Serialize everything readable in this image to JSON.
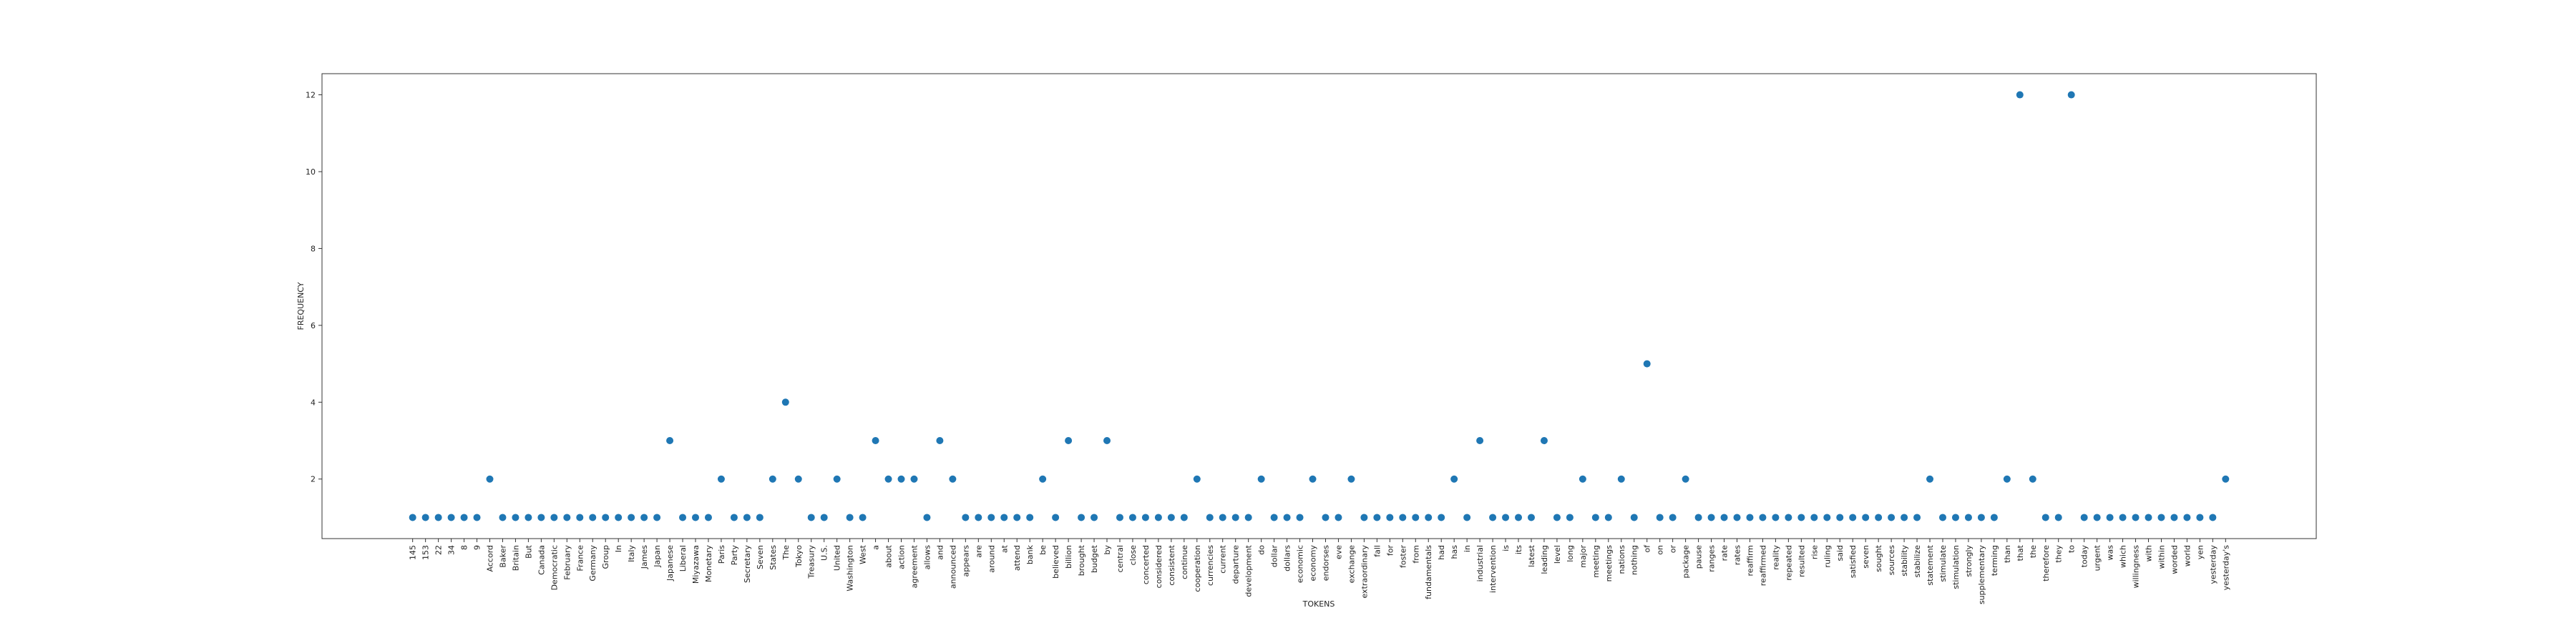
{
  "chart_data": {
    "type": "scatter",
    "xlabel": "TOKENS",
    "ylabel": "FREQUENCY",
    "color": "#1f77b4",
    "categories": [
      "145",
      "153",
      "22",
      "34",
      "8",
      "9",
      "Accord",
      "Baker",
      "Britain",
      "But",
      "Canada",
      "Democratic",
      "February",
      "France",
      "Germany",
      "Group",
      "In",
      "Italy",
      "James",
      "Japan",
      "Japanese",
      "Liberal",
      "Miyazawa",
      "Monetary",
      "Paris",
      "Party",
      "Secretary",
      "Seven",
      "States",
      "The",
      "Tokyo",
      "Treasury",
      "U.S.",
      "United",
      "Washington",
      "West",
      "a",
      "about",
      "action",
      "agreement",
      "allows",
      "and",
      "announced",
      "appears",
      "are",
      "around",
      "at",
      "attend",
      "bank",
      "be",
      "believed",
      "billion",
      "brought",
      "budget",
      "by",
      "central",
      "close",
      "concerted",
      "considered",
      "consistent",
      "continue",
      "cooperation",
      "currencies",
      "current",
      "departure",
      "development",
      "do",
      "dollar",
      "dollars",
      "economic",
      "economy",
      "endorses",
      "eve",
      "exchange",
      "extraordinary",
      "fall",
      "for",
      "foster",
      "from",
      "fundamentals",
      "had",
      "has",
      "in",
      "industrial",
      "intervention",
      "is",
      "its",
      "latest",
      "leading",
      "level",
      "long",
      "major",
      "meeting",
      "meetings",
      "nations",
      "nothing",
      "of",
      "on",
      "or",
      "package",
      "pause",
      "ranges",
      "rate",
      "rates",
      "reaffirm",
      "reaffirmed",
      "reality",
      "repeated",
      "resulted",
      "rise",
      "ruling",
      "said",
      "satisfied",
      "seven",
      "sought",
      "sources",
      "stability",
      "stabilize",
      "statement",
      "stimulate",
      "stimulation",
      "strongly",
      "supplementary",
      "terming",
      "than",
      "that",
      "the",
      "therefore",
      "they",
      "to",
      "today",
      "urgent",
      "was",
      "which",
      "willingness",
      "with",
      "within",
      "worded",
      "world",
      "yen",
      "yesterday",
      "yesterday's"
    ],
    "values": [
      1,
      1,
      1,
      1,
      1,
      1,
      2,
      1,
      1,
      1,
      1,
      1,
      1,
      1,
      1,
      1,
      1,
      1,
      1,
      1,
      3,
      1,
      1,
      1,
      2,
      1,
      1,
      1,
      2,
      4,
      2,
      1,
      1,
      2,
      1,
      1,
      3,
      2,
      2,
      2,
      1,
      3,
      2,
      1,
      1,
      1,
      1,
      1,
      1,
      2,
      1,
      3,
      1,
      1,
      3,
      1,
      1,
      1,
      1,
      1,
      1,
      2,
      1,
      1,
      1,
      1,
      2,
      1,
      1,
      1,
      2,
      1,
      1,
      2,
      1,
      1,
      1,
      1,
      1,
      1,
      1,
      2,
      1,
      3,
      1,
      1,
      1,
      1,
      3,
      1,
      1,
      2,
      1,
      1,
      2,
      1,
      5,
      1,
      1,
      2,
      1,
      1,
      1,
      1,
      1,
      1,
      1,
      1,
      1,
      1,
      1,
      1,
      1,
      1,
      1,
      1,
      1,
      1,
      2,
      1,
      1,
      1,
      1,
      1,
      2,
      12,
      2,
      1,
      1,
      12,
      1,
      1,
      1,
      1,
      1,
      1,
      1,
      1,
      1,
      1,
      1,
      2
    ],
    "ylim": [
      0.45,
      12.55
    ],
    "yticks": [
      2,
      4,
      6,
      8,
      10,
      12
    ]
  }
}
